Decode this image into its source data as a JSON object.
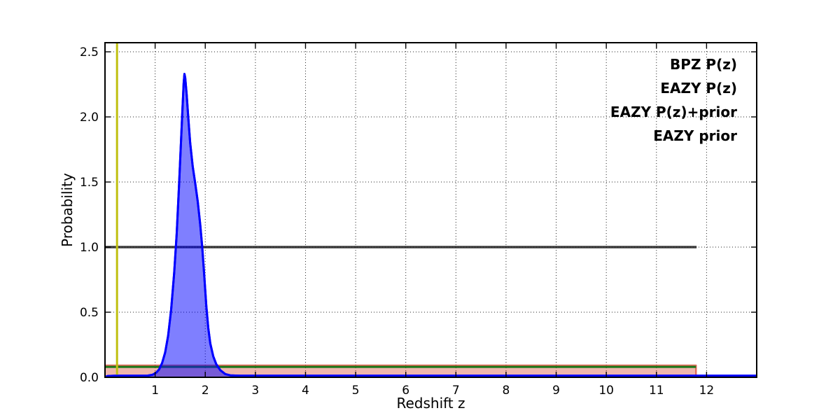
{
  "chart_data": {
    "type": "line",
    "title": "",
    "xlabel": "Redshift z",
    "ylabel": "Probability",
    "xlim": [
      0,
      13
    ],
    "ylim": [
      0,
      2.57
    ],
    "xticks": [
      1,
      2,
      3,
      4,
      5,
      6,
      7,
      8,
      9,
      10,
      11,
      12
    ],
    "yticks": [
      0.0,
      0.5,
      1.0,
      1.5,
      2.0,
      2.5
    ],
    "ytick_labels": [
      "0.0",
      "0.5",
      "1.0",
      "1.5",
      "2.0",
      "2.5"
    ],
    "grid": true,
    "grid_style": "dotted",
    "legend_position": "upper right",
    "legend_frame": false,
    "background": "#ffffff",
    "series": [
      {
        "name": "EAZY P(z)",
        "kind": "filled-step",
        "line_color": "rgba(214, 72, 50, 0.75)",
        "fill_color": "rgba(209, 45, 20, 0.35)",
        "line_width": 2.4,
        "drop_to_zero_at_end": true,
        "points": [
          [
            0,
            0.092
          ],
          [
            11.79,
            0.092
          ]
        ]
      },
      {
        "name": "EAZY P(z)+prior",
        "kind": "line",
        "line_color": "#187818",
        "line_width": 3,
        "points": [
          [
            0,
            0.08
          ],
          [
            11.79,
            0.08
          ]
        ]
      },
      {
        "name": "EAZY prior",
        "kind": "line",
        "line_color": "rgba(28, 28, 28, 0.85)",
        "line_width": 3.4,
        "points": [
          [
            0,
            1.0
          ],
          [
            11.8,
            1.0
          ]
        ]
      },
      {
        "name": "BPZ P(z)",
        "kind": "filled-curve",
        "line_color": "#0000ff",
        "fill_color": "rgba(0, 0, 255, 0.5)",
        "line_width": 3,
        "peak": {
          "z": 1.585,
          "p": 2.33
        },
        "points": [
          [
            0,
            0.002
          ],
          [
            0.06,
            0.01
          ],
          [
            0.2,
            0.012
          ],
          [
            0.5,
            0.012
          ],
          [
            0.85,
            0.013
          ],
          [
            0.95,
            0.02
          ],
          [
            1.02,
            0.035
          ],
          [
            1.08,
            0.06
          ],
          [
            1.14,
            0.11
          ],
          [
            1.2,
            0.19
          ],
          [
            1.26,
            0.32
          ],
          [
            1.32,
            0.52
          ],
          [
            1.38,
            0.8
          ],
          [
            1.43,
            1.1
          ],
          [
            1.48,
            1.5
          ],
          [
            1.52,
            1.85
          ],
          [
            1.55,
            2.1
          ],
          [
            1.57,
            2.26
          ],
          [
            1.585,
            2.33
          ],
          [
            1.6,
            2.3
          ],
          [
            1.63,
            2.17
          ],
          [
            1.66,
            2.0
          ],
          [
            1.7,
            1.8
          ],
          [
            1.75,
            1.62
          ],
          [
            1.8,
            1.49
          ],
          [
            1.85,
            1.35
          ],
          [
            1.9,
            1.17
          ],
          [
            1.94,
            1.0
          ],
          [
            1.98,
            0.78
          ],
          [
            2.02,
            0.55
          ],
          [
            2.06,
            0.38
          ],
          [
            2.1,
            0.26
          ],
          [
            2.16,
            0.16
          ],
          [
            2.22,
            0.1
          ],
          [
            2.3,
            0.055
          ],
          [
            2.4,
            0.025
          ],
          [
            2.5,
            0.015
          ],
          [
            2.7,
            0.012
          ],
          [
            13,
            0.012
          ]
        ]
      }
    ],
    "vline": {
      "x": 0.24,
      "color": "#bfbf10",
      "line_width": 3
    },
    "legend": [
      {
        "label": "BPZ P(z)",
        "color": "#0000ff"
      },
      {
        "label": "EAZY P(z)",
        "color": "#ff0000"
      },
      {
        "label": "EAZY P(z)+prior",
        "color": "#008000"
      },
      {
        "label": "EAZY prior",
        "color": "#0a0a0a"
      }
    ]
  }
}
